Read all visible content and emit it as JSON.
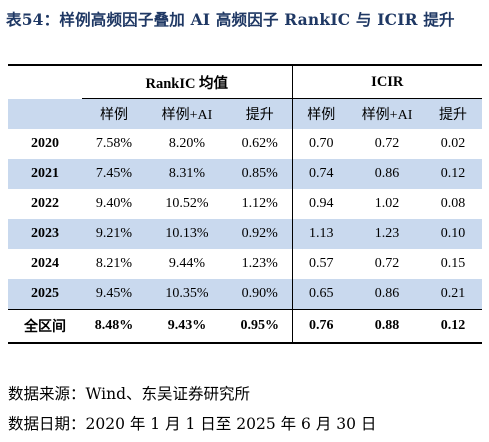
{
  "title": "表54：样例高频因子叠加 AI 高频因子 RankIC 与 ICIR 提升",
  "table": {
    "group_headers": [
      "RankIC 均值",
      "ICIR"
    ],
    "sub_headers": [
      "样例",
      "样例+AI",
      "提升",
      "样例",
      "样例+AI",
      "提升"
    ],
    "rows": [
      {
        "label": "2020",
        "values": [
          "7.58%",
          "8.20%",
          "0.62%",
          "0.70",
          "0.72",
          "0.02"
        ]
      },
      {
        "label": "2021",
        "values": [
          "7.45%",
          "8.31%",
          "0.85%",
          "0.74",
          "0.86",
          "0.12"
        ]
      },
      {
        "label": "2022",
        "values": [
          "9.40%",
          "10.52%",
          "1.12%",
          "0.94",
          "1.02",
          "0.08"
        ]
      },
      {
        "label": "2023",
        "values": [
          "9.21%",
          "10.13%",
          "0.92%",
          "1.13",
          "1.23",
          "0.10"
        ]
      },
      {
        "label": "2024",
        "values": [
          "8.21%",
          "9.44%",
          "1.23%",
          "0.57",
          "0.72",
          "0.15"
        ]
      },
      {
        "label": "2025",
        "values": [
          "9.45%",
          "10.35%",
          "0.90%",
          "0.65",
          "0.86",
          "0.21"
        ]
      }
    ],
    "total": {
      "label": "全区间",
      "values": [
        "8.48%",
        "9.43%",
        "0.95%",
        "0.76",
        "0.88",
        "0.12"
      ]
    },
    "shade_color": "#c9d9ee"
  },
  "footnotes": {
    "source": "数据来源：Wind、东吴证券研究所",
    "date": "数据日期：2020 年 1 月 1 日至 2025 年 6 月 30 日"
  },
  "colors": {
    "title": "#1f3864"
  }
}
